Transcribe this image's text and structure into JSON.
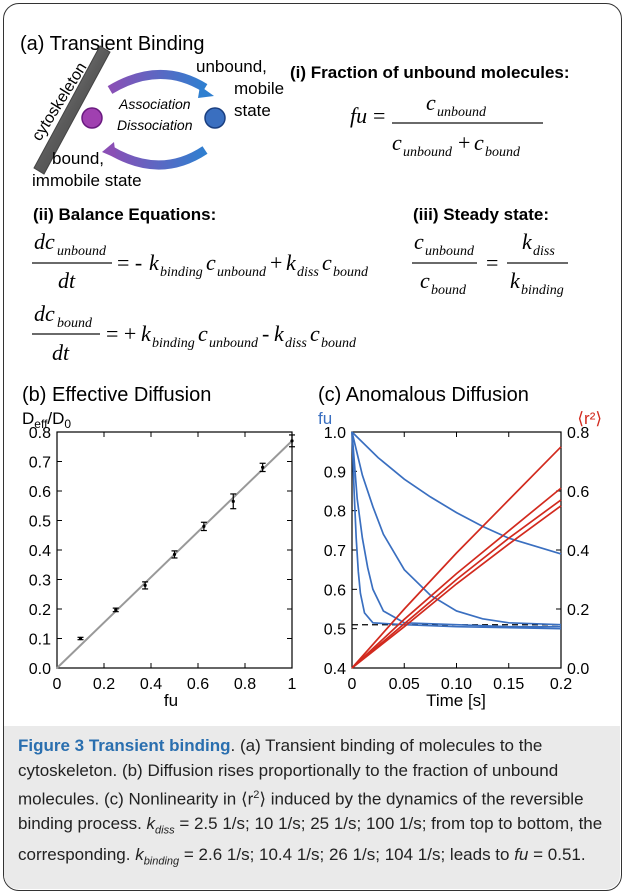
{
  "panel_a": {
    "title": "(a) Transient Binding",
    "cytoskeleton_label": "cytoskeleton",
    "association": "Association",
    "dissociation": "Dissociation",
    "unbound_label_1": "unbound,",
    "unbound_label_2": "mobile",
    "unbound_label_3": "state",
    "bound_label_1": "bound,",
    "bound_label_2": "immobile state",
    "section_i": "(i) Fraction of unbound molecules:",
    "section_ii": "(ii) Balance Equations:",
    "section_iii": "(iii) Steady state:"
  },
  "panel_b": {
    "title": "(b) Effective Diffusion",
    "ylabel": "D",
    "ylabel_sub1": "eff",
    "ylabel_sep": "/D",
    "ylabel_sub2": "0",
    "xlabel": "fu",
    "x_ticks": [
      "0",
      "0.2",
      "0.4",
      "0.6",
      "0.8",
      "1"
    ],
    "y_ticks": [
      "0.0",
      "0.1",
      "0.2",
      "0.3",
      "0.4",
      "0.5",
      "0.6",
      "0.7",
      "0.8"
    ]
  },
  "panel_c": {
    "title": "(c) Anomalous Diffusion",
    "left_label": "fu",
    "right_label": "⟨r²⟩",
    "xlabel": "Time [s]",
    "x_ticks": [
      "0",
      "0.05",
      "0.10",
      "0.15",
      "0.2"
    ],
    "left_ticks": [
      "0.4",
      "0.5",
      "0.6",
      "0.7",
      "0.8",
      "0.9",
      "1.0"
    ],
    "right_ticks": [
      "0.0",
      "0.2",
      "0.4",
      "0.6",
      "0.8"
    ]
  },
  "chart_data": [
    {
      "type": "scatter",
      "title": "(b) Effective Diffusion",
      "xlabel": "fu",
      "ylabel": "Deff/D0",
      "xlim": [
        0,
        1
      ],
      "ylim": [
        0,
        0.8
      ],
      "x": [
        0.1,
        0.25,
        0.375,
        0.5,
        0.625,
        0.75,
        0.875,
        1.0
      ],
      "y": [
        0.1,
        0.197,
        0.28,
        0.385,
        0.48,
        0.565,
        0.68,
        0.77
      ],
      "errors": [
        0.004,
        0.006,
        0.012,
        0.012,
        0.014,
        0.025,
        0.014,
        0.02
      ],
      "fit_line": {
        "x": [
          0,
          1
        ],
        "y": [
          0,
          0.77
        ]
      },
      "colors": {
        "fit": "#999999",
        "points": "#000000"
      }
    },
    {
      "type": "line",
      "title": "(c) Anomalous Diffusion",
      "xlabel": "Time [s]",
      "xlim": [
        0,
        0.2
      ],
      "y_left": {
        "label": "fu",
        "lim": [
          0.4,
          1.0
        ]
      },
      "y_right": {
        "label": "⟨r²⟩",
        "lim": [
          0.0,
          0.8
        ]
      },
      "reference_line": {
        "y": 0.51,
        "style": "dashed"
      },
      "series": [
        {
          "axis": "left",
          "color": "#3a6fc0",
          "x": [
            0,
            0.025,
            0.05,
            0.075,
            0.1,
            0.125,
            0.15,
            0.175,
            0.2
          ],
          "y": [
            1.0,
            0.935,
            0.88,
            0.835,
            0.795,
            0.76,
            0.73,
            0.71,
            0.69
          ]
        },
        {
          "axis": "left",
          "color": "#3a6fc0",
          "x": [
            0,
            0.01,
            0.02,
            0.03,
            0.05,
            0.075,
            0.1,
            0.125,
            0.15,
            0.2
          ],
          "y": [
            1.0,
            0.89,
            0.81,
            0.74,
            0.65,
            0.585,
            0.545,
            0.525,
            0.515,
            0.51
          ]
        },
        {
          "axis": "left",
          "color": "#3a6fc0",
          "x": [
            0,
            0.005,
            0.01,
            0.015,
            0.02,
            0.03,
            0.05,
            0.1,
            0.15,
            0.2
          ],
          "y": [
            1.0,
            0.83,
            0.73,
            0.655,
            0.6,
            0.545,
            0.515,
            0.51,
            0.505,
            0.505
          ]
        },
        {
          "axis": "left",
          "color": "#3a6fc0",
          "x": [
            0,
            0.002,
            0.004,
            0.006,
            0.008,
            0.012,
            0.02,
            0.05,
            0.1,
            0.2
          ],
          "y": [
            1.0,
            0.85,
            0.73,
            0.645,
            0.59,
            0.54,
            0.515,
            0.51,
            0.505,
            0.5
          ]
        },
        {
          "axis": "right",
          "color": "#d22a1e",
          "x": [
            0,
            0.05,
            0.1,
            0.15,
            0.2
          ],
          "y": [
            0.0,
            0.2,
            0.39,
            0.57,
            0.75
          ]
        },
        {
          "axis": "right",
          "color": "#d22a1e",
          "x": [
            0,
            0.05,
            0.1,
            0.15,
            0.2
          ],
          "y": [
            0.0,
            0.165,
            0.32,
            0.465,
            0.61
          ]
        },
        {
          "axis": "right",
          "color": "#d22a1e",
          "x": [
            0,
            0.05,
            0.1,
            0.15,
            0.2
          ],
          "y": [
            0.0,
            0.15,
            0.3,
            0.44,
            0.57
          ]
        },
        {
          "axis": "right",
          "color": "#d22a1e",
          "x": [
            0,
            0.05,
            0.1,
            0.15,
            0.2
          ],
          "y": [
            0.0,
            0.14,
            0.285,
            0.42,
            0.55
          ]
        }
      ]
    }
  ],
  "caption": {
    "label": "Figure 3 Transient binding",
    "text_1": ". (a) Transient binding of molecules to the cytoskeleton. (b) Diffusion rises proportionally to the fraction of unbound molecules. (c) Nonlinearity in ⟨r",
    "sup": "2",
    "text_2": "⟩ induced by the dynamics of the reversible binding process. ",
    "kdiss_k": "k",
    "kdiss_sub": "diss",
    "text_3": " = 2.5 1/s; 10 1/s; 25 1/s; 100 1/s; from top to bottom, the corresponding. ",
    "kbind_k": "k",
    "kbind_sub": "binding",
    "text_4": " = 2.6 1/s; 10.4 1/s; 26 1/s; 104 1/s; leads to ",
    "fu": "fu",
    "text_5": " = 0.51."
  }
}
